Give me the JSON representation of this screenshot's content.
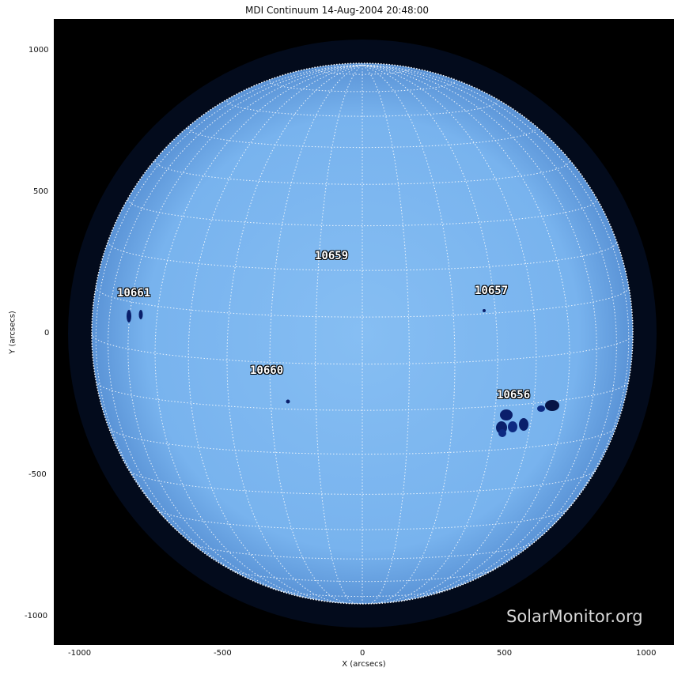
{
  "title": "MDI Continuum 14-Aug-2004 20:48:00",
  "x_axis": {
    "label": "X (arcsecs)",
    "ticks": [
      "-1000",
      "-500",
      "0",
      "500",
      "1000"
    ]
  },
  "y_axis": {
    "label": "Y (arcsecs)",
    "ticks": [
      "1000",
      "500",
      "0",
      "-500",
      "-1000"
    ]
  },
  "active_regions": [
    {
      "id": "10661"
    },
    {
      "id": "10659"
    },
    {
      "id": "10657"
    },
    {
      "id": "10660"
    },
    {
      "id": "10656"
    }
  ],
  "watermark": "SolarMonitor.org",
  "colors": {
    "disk": "#7fb8f0",
    "background": "#000000",
    "sunspot": "#0a1f6b",
    "grid": "#ffffff"
  }
}
